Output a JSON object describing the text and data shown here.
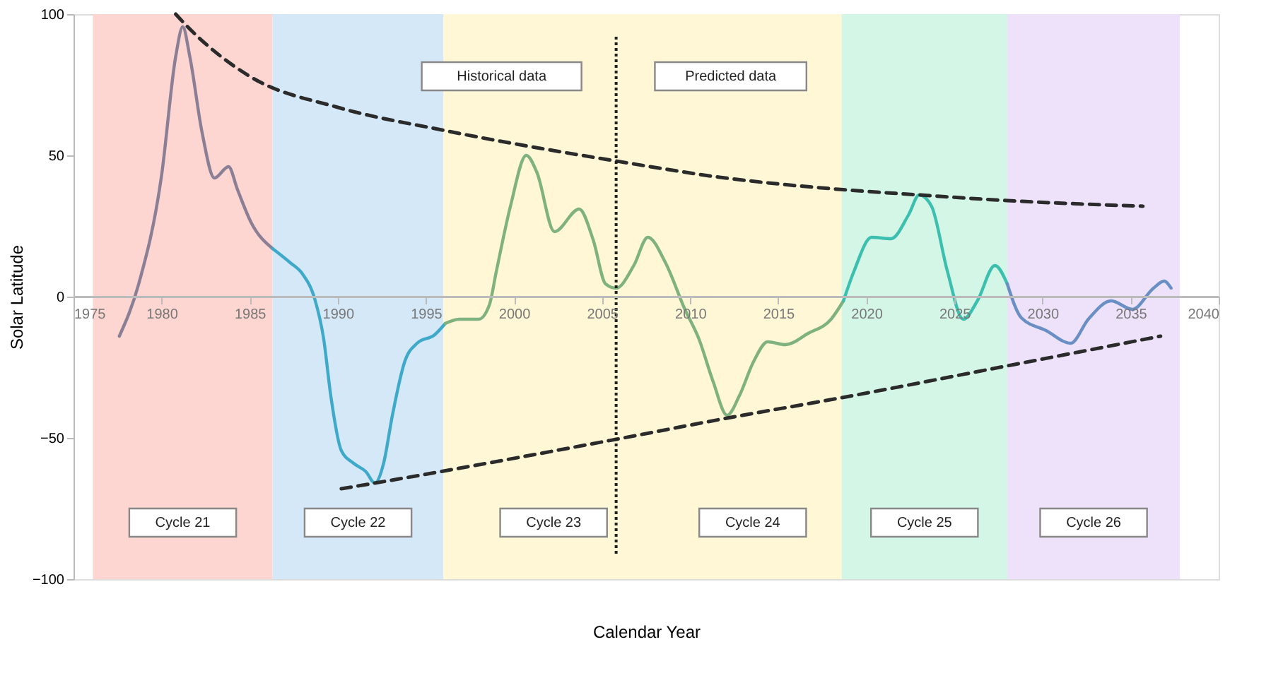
{
  "chart_data": {
    "type": "line",
    "xlabel": "Calendar Year",
    "ylabel": "Solar Latitude",
    "xlim": [
      1975,
      2040
    ],
    "xticks": [
      1975,
      1980,
      1985,
      1990,
      1995,
      2000,
      2005,
      2010,
      2015,
      2020,
      2025,
      2030,
      2035,
      2040
    ],
    "ylim": [
      -100,
      100
    ],
    "yticks": [
      -100,
      -50,
      0,
      50,
      100
    ],
    "grid": false,
    "marker": "none",
    "series": [
      {
        "color": "#8a7f95",
        "x": [
          1977.6,
          1978.7,
          1980.0,
          1980.8,
          1981.2,
          1981.6,
          1982.3,
          1983.0,
          1983.8,
          1984.3,
          1985.1,
          1986.3
        ],
        "values": [
          -14,
          4.5,
          43,
          85,
          95.5,
          85,
          58,
          42,
          46,
          38,
          26,
          17
        ]
      },
      {
        "color": "#3fa9c9",
        "x": [
          1986.3,
          1987.3,
          1988.0,
          1988.7,
          1989.2,
          1989.6,
          1990.2,
          1990.9,
          1991.6,
          1992.1,
          1992.6,
          1993.1,
          1993.8,
          1994.5,
          1995.5,
          1996.1
        ],
        "values": [
          17,
          12,
          8,
          -1,
          -15,
          -35,
          -54.5,
          -59,
          -62,
          -66,
          -59,
          -42,
          -23,
          -16.5,
          -13.5,
          -9.5
        ]
      },
      {
        "color": "#7fb27f",
        "x": [
          1996.1,
          1996.9,
          1998.0,
          1998.6,
          1999.0,
          1999.8,
          2000.7,
          2001.3,
          2002.3,
          2003.7,
          2004.5,
          2005.2,
          2005.8,
          2006.8,
          2007.6,
          2008.6,
          2009.7,
          2010.5,
          2011.3,
          2012.1,
          2012.8,
          2013.6,
          2014.4,
          2015.4,
          2016.7,
          2018.0,
          2018.7
        ],
        "values": [
          -9.5,
          -8,
          -8,
          -3,
          9,
          32,
          50,
          44,
          23,
          31,
          20,
          4.5,
          3,
          11,
          21,
          12,
          -4.5,
          -15,
          -30,
          -42,
          -35,
          -23,
          -16,
          -17,
          -13,
          -8,
          -1.5
        ]
      },
      {
        "color": "#3dbfb0",
        "x": [
          2018.7,
          2019.3,
          2020.3,
          2021.4,
          2022.4,
          2023.0,
          2023.7,
          2024.6,
          2025.5,
          2026.3,
          2027.3,
          2028.0
        ],
        "values": [
          -1.5,
          9,
          21,
          20.5,
          29,
          36,
          32,
          9,
          -8,
          -1.5,
          11,
          4.5
        ]
      },
      {
        "color": "#6a8fc4",
        "x": [
          2028.0,
          2028.8,
          2030.2,
          2031.6,
          2032.6,
          2033.9,
          2035.1,
          2036.3,
          2036.9,
          2037.3
        ],
        "values": [
          4.5,
          -7.5,
          -12,
          -16.5,
          -8,
          -1.5,
          -4.5,
          3,
          5.5,
          3
        ]
      },
      {
        "color": "#2b2b2b",
        "line_style": "dashed",
        "x": [
          1980.8,
          1981.4,
          1985.0,
          1990.0,
          1995.9,
          2005.8,
          2012.0,
          2018.4,
          2023.0,
          2028.0,
          2035.7
        ],
        "values": [
          100,
          96,
          78,
          67,
          59,
          48,
          42,
          38,
          36,
          34,
          32
        ]
      },
      {
        "color": "#2b2b2b",
        "line_style": "dashed",
        "x": [
          1990.2,
          1992.1,
          2005.8,
          2012.1,
          2018.4,
          2028.0,
          2036.7
        ],
        "values": [
          -68,
          -66,
          -50.5,
          -43,
          -36,
          -24.5,
          -14
        ]
      }
    ],
    "bands": [
      {
        "axis": "x",
        "from": 1976.1,
        "to": 1986.3,
        "label": "Cycle 21",
        "color": "#fdd6d1"
      },
      {
        "axis": "x",
        "from": 1986.3,
        "to": 1996.0,
        "label": "Cycle 22",
        "color": "#d5e8f8"
      },
      {
        "axis": "x",
        "from": 1996.0,
        "to": 2008.5,
        "label": "Cycle 23",
        "color": "#fff7d6"
      },
      {
        "axis": "x",
        "from": 2008.5,
        "to": 2018.6,
        "label": "Cycle 24",
        "color": "#fff7d6"
      },
      {
        "axis": "x",
        "from": 2018.6,
        "to": 2028.0,
        "label": "Cycle 25",
        "color": "#d3f6e7"
      },
      {
        "axis": "x",
        "from": 2028.0,
        "to": 2037.8,
        "label": "Cycle 26",
        "color": "#ede2fa"
      }
    ],
    "ref_lines": [
      {
        "axis": "x",
        "value": 2005.8,
        "color": "#222222",
        "line_style": "dotted"
      }
    ],
    "annotations": [
      "Historical data",
      "Predicted data"
    ]
  }
}
